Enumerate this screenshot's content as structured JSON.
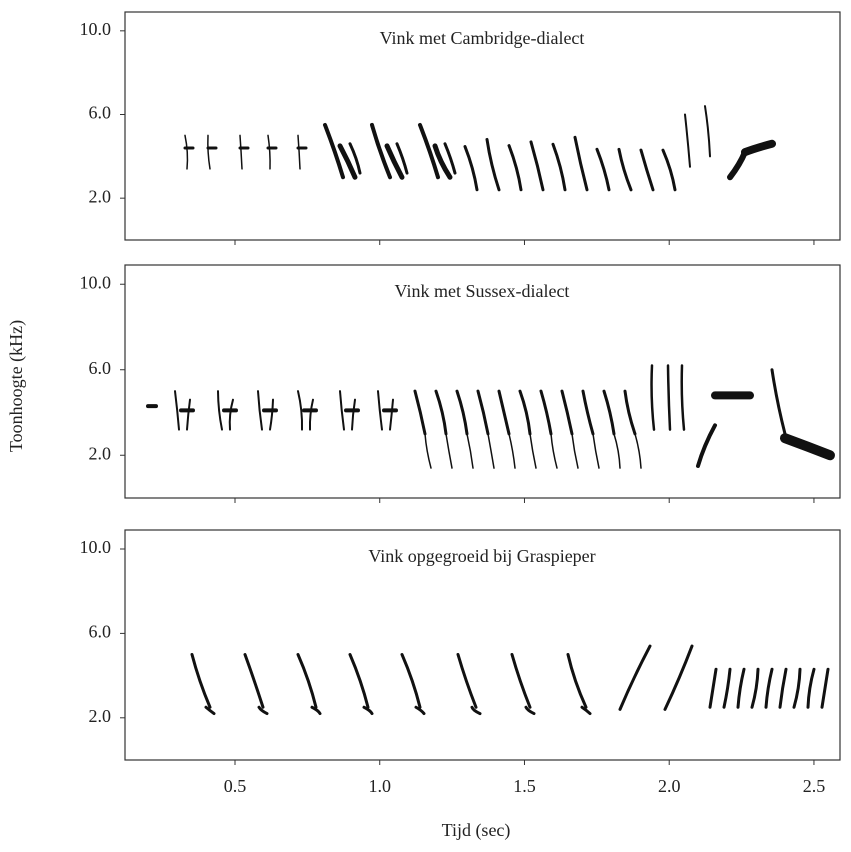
{
  "ylabel": "Toonhoogte (kHz)",
  "xlabel": "Tijd (sec)",
  "chart_data": [
    {
      "type": "spectrogram",
      "title": "Vink met Cambridge-dialect",
      "ylim": [
        0,
        10.9
      ],
      "yticks": [
        {
          "value": 2,
          "label": "2.0"
        },
        {
          "value": 6,
          "label": "6.0"
        },
        {
          "value": 10,
          "label": "10.0"
        }
      ],
      "xlim": [
        0.12,
        2.59
      ],
      "xticks": [
        0.5,
        1,
        1.5,
        2,
        2.5
      ]
    },
    {
      "type": "spectrogram",
      "title": "Vink met Sussex-dialect",
      "ylim": [
        0,
        10.9
      ],
      "yticks": [
        {
          "value": 2,
          "label": "2.0"
        },
        {
          "value": 6,
          "label": "6.0"
        },
        {
          "value": 10,
          "label": "10.0"
        }
      ],
      "xlim": [
        0.12,
        2.59
      ],
      "xticks": [
        0.5,
        1,
        1.5,
        2,
        2.5
      ]
    },
    {
      "type": "spectrogram",
      "title": "Vink opgegroeid bij Graspieper",
      "ylim": [
        0,
        10.9
      ],
      "yticks": [
        {
          "value": 2,
          "label": "2.0"
        },
        {
          "value": 6,
          "label": "6.0"
        },
        {
          "value": 10,
          "label": "10.0"
        }
      ],
      "xlim": [
        0.12,
        2.59
      ],
      "xticks": [
        0.5,
        {
          "value": 1,
          "label": "1.0"
        },
        1.5,
        {
          "value": 2,
          "label": "2.0"
        },
        2.5
      ]
    }
  ]
}
